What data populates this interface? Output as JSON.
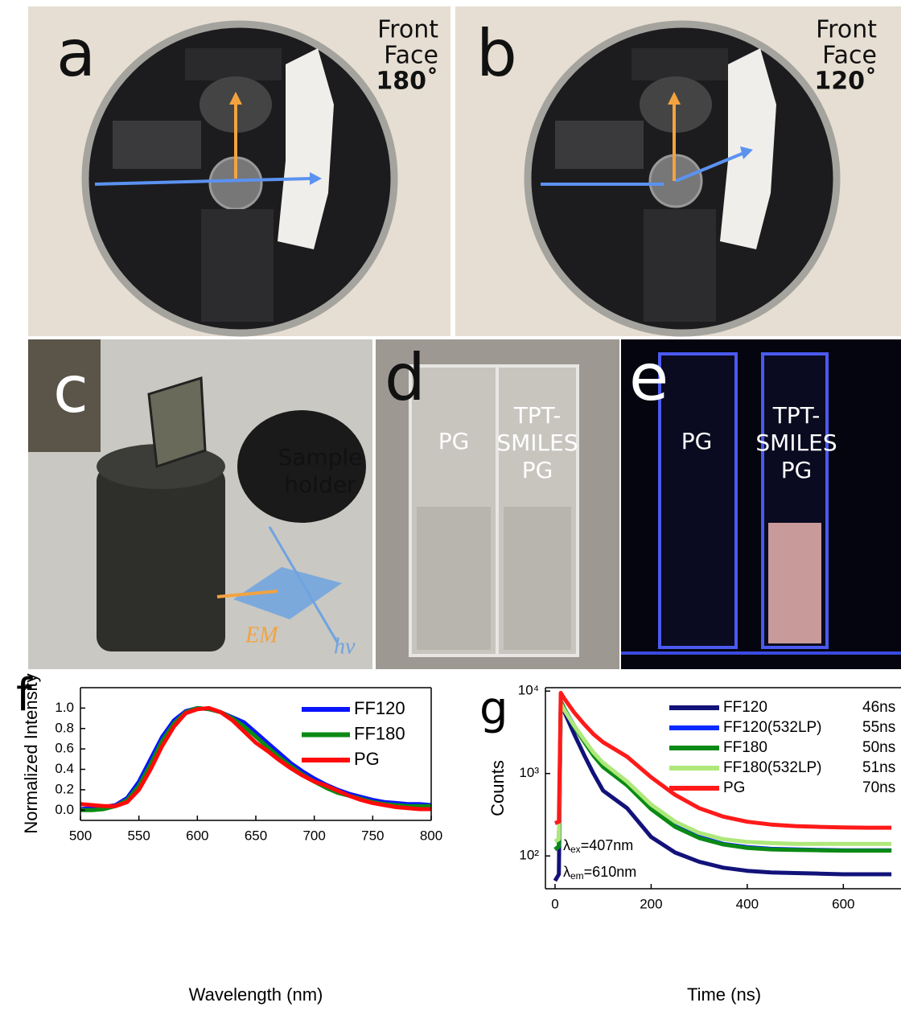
{
  "photos": {
    "a": {
      "letter": "a",
      "lines": [
        "Front",
        "Face",
        "180˚"
      ]
    },
    "b": {
      "letter": "b",
      "lines": [
        "Front",
        "Face",
        "120˚"
      ]
    },
    "c": {
      "letter": "c",
      "lines": [
        "Sample",
        "holder"
      ],
      "em": "EM",
      "hv": "hν"
    },
    "d": {
      "letter": "d",
      "left": "PG",
      "right": [
        "TPT-",
        "SMILES",
        "PG"
      ]
    },
    "e": {
      "letter": "e",
      "left": "PG",
      "right": [
        "TPT-",
        "SMILES",
        "PG"
      ]
    }
  },
  "chart_data": [
    {
      "type": "line",
      "panel": "f",
      "xlabel": "Wavelength (nm)",
      "ylabel": "Normalized Intensity",
      "x": [
        500,
        510,
        520,
        530,
        540,
        550,
        560,
        570,
        580,
        590,
        600,
        610,
        620,
        630,
        640,
        650,
        660,
        670,
        680,
        690,
        700,
        710,
        720,
        730,
        740,
        750,
        760,
        770,
        780,
        790,
        800
      ],
      "xlim": [
        500,
        800
      ],
      "xticks": [
        500,
        550,
        600,
        650,
        700,
        750,
        800
      ],
      "ylim": [
        -0.1,
        1.2
      ],
      "yticks": [
        {
          "value": 0,
          "label": "0.0"
        },
        0.2,
        0.4,
        0.6,
        0.8,
        {
          "value": 1,
          "label": "1.0"
        }
      ],
      "series": [
        {
          "name": "FF120",
          "color": "#0a14ff",
          "values": [
            0.01,
            0.02,
            0.03,
            0.05,
            0.12,
            0.28,
            0.5,
            0.72,
            0.88,
            0.97,
            1.0,
            0.99,
            0.96,
            0.91,
            0.86,
            0.76,
            0.66,
            0.56,
            0.46,
            0.38,
            0.31,
            0.25,
            0.2,
            0.16,
            0.13,
            0.1,
            0.08,
            0.07,
            0.06,
            0.06,
            0.05
          ]
        },
        {
          "name": "FF180",
          "color": "#0a8a14",
          "values": [
            0.0,
            0.0,
            0.01,
            0.04,
            0.1,
            0.24,
            0.45,
            0.68,
            0.85,
            0.96,
            1.0,
            0.99,
            0.96,
            0.9,
            0.82,
            0.72,
            0.62,
            0.52,
            0.43,
            0.35,
            0.28,
            0.22,
            0.17,
            0.14,
            0.11,
            0.08,
            0.06,
            0.05,
            0.04,
            0.04,
            0.04
          ]
        },
        {
          "name": "PG",
          "color": "#ff0a0a",
          "values": [
            0.06,
            0.05,
            0.04,
            0.04,
            0.08,
            0.2,
            0.4,
            0.63,
            0.82,
            0.95,
            0.99,
            1.0,
            0.96,
            0.88,
            0.77,
            0.66,
            0.58,
            0.49,
            0.41,
            0.34,
            0.28,
            0.24,
            0.19,
            0.14,
            0.1,
            0.07,
            0.05,
            0.03,
            0.02,
            0.01,
            0.01
          ]
        }
      ]
    },
    {
      "type": "line",
      "panel": "g",
      "xlabel": "Time (ns)",
      "ylabel": "Counts",
      "log_y": true,
      "x": [
        0,
        8,
        12,
        20,
        40,
        60,
        80,
        100,
        150,
        200,
        250,
        300,
        350,
        400,
        450,
        500,
        550,
        600,
        650,
        700
      ],
      "xlim": [
        -20,
        720
      ],
      "xticks": [
        0,
        200,
        400,
        600
      ],
      "ylim": [
        40,
        11000
      ],
      "yticks": [
        {
          "value": 100,
          "label": "10²"
        },
        {
          "value": 1000,
          "label": "10³"
        },
        {
          "value": 10000,
          "label": "10⁴"
        }
      ],
      "annotations": [
        {
          "symbol": "λ",
          "sub": "ex",
          "text": "=407nm"
        },
        {
          "symbol": "λ",
          "sub": "em",
          "text": "=610nm"
        }
      ],
      "series": [
        {
          "name": "FF120",
          "lifetime": "46ns",
          "color": "#12127a",
          "values": [
            50,
            60,
            7000,
            5500,
            3000,
            1700,
            1000,
            620,
            380,
            170,
            110,
            85,
            72,
            66,
            63,
            62,
            61,
            60,
            60,
            60
          ]
        },
        {
          "name": "FF120(532LP)",
          "lifetime": "55ns",
          "color": "#0a2aff",
          "values": [
            120,
            130,
            7500,
            6000,
            3800,
            2500,
            1700,
            1250,
            750,
            380,
            230,
            170,
            140,
            128,
            122,
            120,
            118,
            117,
            117,
            117
          ]
        },
        {
          "name": "FF180",
          "lifetime": "50ns",
          "color": "#0a8a14",
          "values": [
            120,
            130,
            7500,
            6000,
            3700,
            2450,
            1650,
            1200,
            720,
            370,
            225,
            165,
            138,
            125,
            120,
            118,
            117,
            116,
            116,
            116
          ]
        },
        {
          "name": "FF180(532LP)",
          "lifetime": "51ns",
          "color": "#aee87a",
          "values": [
            150,
            160,
            7000,
            5800,
            3800,
            2600,
            1800,
            1350,
            800,
            420,
            260,
            190,
            160,
            148,
            143,
            140,
            140,
            140,
            140,
            140
          ]
        },
        {
          "name": "PG",
          "lifetime": "70ns",
          "color": "#ff1a1a",
          "values": [
            250,
            260,
            9500,
            8000,
            5500,
            4000,
            3000,
            2400,
            1600,
            900,
            550,
            380,
            300,
            260,
            240,
            230,
            225,
            222,
            220,
            220
          ]
        }
      ]
    }
  ]
}
